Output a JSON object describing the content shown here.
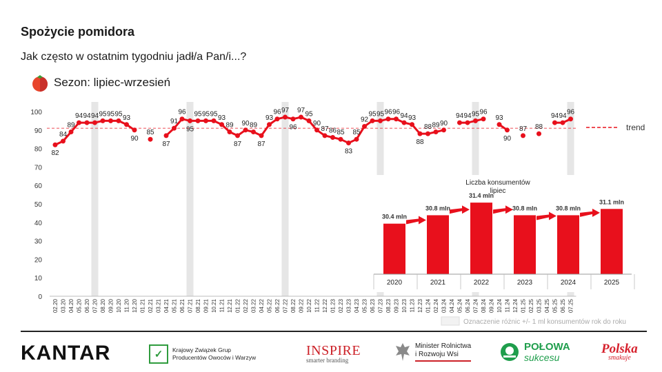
{
  "title": "Spożycie pomidora",
  "subtitle": "Jak często w ostatnim tygodniu jadł/a Pan/i...?",
  "season_label": "Sezon: lipiec-wrzesień",
  "colors": {
    "series": "#e8101c",
    "trend": "#e8101c",
    "band": "#e6e6e6",
    "arrow": "#e8101c"
  },
  "chart_data": [
    {
      "type": "line",
      "ylim": [
        0,
        100
      ],
      "yticks": [
        0,
        10,
        20,
        30,
        40,
        50,
        60,
        70,
        80,
        90,
        100
      ],
      "x": [
        "02.20",
        "03.20",
        "04.20",
        "05.20",
        "06.20",
        "07.20",
        "08.20",
        "09.20",
        "10.20",
        "11.20",
        "12.20",
        "01.21",
        "02.21",
        "03.21",
        "04.21",
        "05.21",
        "06.21",
        "07.21",
        "08.21",
        "09.21",
        "10.21",
        "11.21",
        "12.21",
        "01.22",
        "02.22",
        "03.22",
        "04.22",
        "05.22",
        "06.22",
        "07.22",
        "08.22",
        "09.22",
        "10.22",
        "11.22",
        "12.22",
        "01.23",
        "02.23",
        "03.23",
        "04.23",
        "05.23",
        "06.23",
        "07.23",
        "08.23",
        "09.23",
        "10.23",
        "11.23",
        "12.23",
        "01.24",
        "02.24",
        "03.24",
        "04.24",
        "05.24",
        "06.24",
        "07.24",
        "08.24",
        "09.24",
        "10.24",
        "11.24",
        "12.24",
        "01.25",
        "02.25",
        "03.25",
        "04.25",
        "05.25",
        "06.25",
        "07.25"
      ],
      "values": [
        82,
        84,
        89,
        94,
        94,
        94,
        95,
        95,
        95,
        93,
        90,
        null,
        85,
        null,
        87,
        91,
        96,
        95,
        95,
        95,
        95,
        93,
        89,
        87,
        90,
        89,
        87,
        93,
        96,
        97,
        96,
        97,
        95,
        90,
        87,
        86,
        85,
        83,
        85,
        92,
        95,
        95,
        96,
        96,
        94,
        93,
        88,
        88,
        89,
        90,
        null,
        94,
        94,
        95,
        96,
        null,
        93,
        90,
        null,
        87,
        null,
        88,
        null,
        94,
        94,
        96
      ],
      "trend": {
        "label": "trend",
        "value": 91
      },
      "season_bands": [
        "07.20",
        "07.21",
        "07.22",
        "07.23",
        "07.24",
        "07.25"
      ]
    },
    {
      "type": "bar",
      "title": "Liczba konsumentów lipiec",
      "categories": [
        "2020",
        "2021",
        "2022",
        "2023",
        "2024",
        "2025"
      ],
      "values": [
        30.4,
        30.8,
        31.4,
        30.8,
        30.8,
        31.1
      ],
      "value_labels": [
        "30.4 mln",
        "30.8 mln",
        "31.4 mln",
        "30.8 mln",
        "30.8 mln",
        "31.1 mln"
      ]
    }
  ],
  "legend_note": "Oznaczenie różnic +/- 1 ml konsumentów rok do roku",
  "logos": {
    "kantar": "KANTAR",
    "kzg_lines": [
      "Krajowy Związek Grup",
      "Producentów Owoców i Warzyw"
    ],
    "inspire": "INSPIRE",
    "inspire_sub": "smarter branding",
    "minister_lines": [
      "Minister Rolnictwa",
      "i Rozwoju Wsi"
    ],
    "polowa": "POŁOWA",
    "polowa_sub": "sukcesu",
    "polska": "Polska",
    "polska_sub": "smakuje"
  }
}
